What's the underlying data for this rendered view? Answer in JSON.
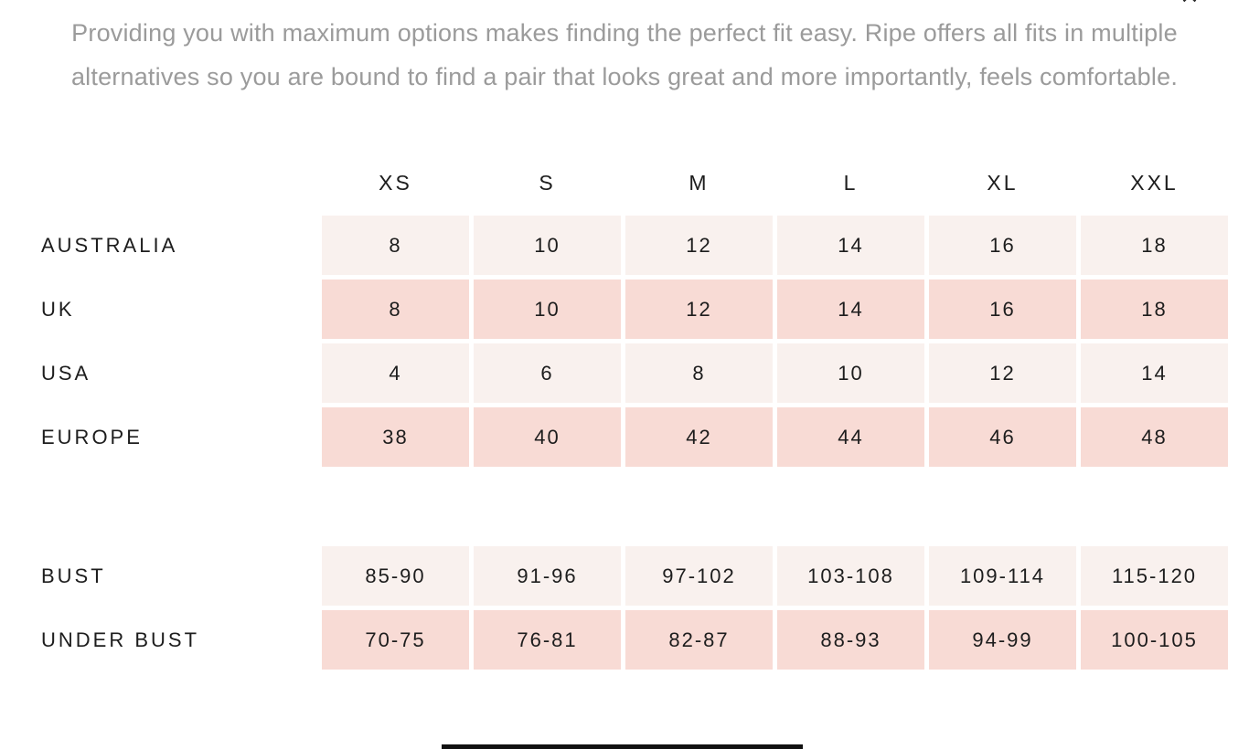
{
  "colors": {
    "cream": "#f9f1ee",
    "pink": "#f8dbd5",
    "text": "#1d1d1d",
    "intro_gray": "#9b9b9b"
  },
  "close": {
    "glyph": "✕"
  },
  "intro": {
    "line1": "Providing you with maximum options makes finding the perfect fit easy. Ripe offers all fits in multiple",
    "line2": "alternatives so you are bound to find a pair that looks great and more importantly, feels comfortable."
  },
  "size_chart": {
    "columns": [
      "XS",
      "S",
      "M",
      "L",
      "XL",
      "XXL"
    ],
    "rows": [
      {
        "label": "AUSTRALIA",
        "tone": "cream",
        "values": [
          "8",
          "10",
          "12",
          "14",
          "16",
          "18"
        ]
      },
      {
        "label": "UK",
        "tone": "pink",
        "values": [
          "8",
          "10",
          "12",
          "14",
          "16",
          "18"
        ]
      },
      {
        "label": "USA",
        "tone": "cream",
        "values": [
          "4",
          "6",
          "8",
          "10",
          "12",
          "14"
        ]
      },
      {
        "label": "EUROPE",
        "tone": "pink",
        "values": [
          "38",
          "40",
          "42",
          "44",
          "46",
          "48"
        ]
      }
    ]
  },
  "measurements": {
    "rows": [
      {
        "label": "BUST",
        "tone": "cream",
        "values": [
          "85-90",
          "91-96",
          "97-102",
          "103-108",
          "109-114",
          "115-120"
        ]
      },
      {
        "label": "UNDER BUST",
        "tone": "pink",
        "values": [
          "70-75",
          "76-81",
          "82-87",
          "88-93",
          "94-99",
          "100-105"
        ]
      }
    ]
  }
}
